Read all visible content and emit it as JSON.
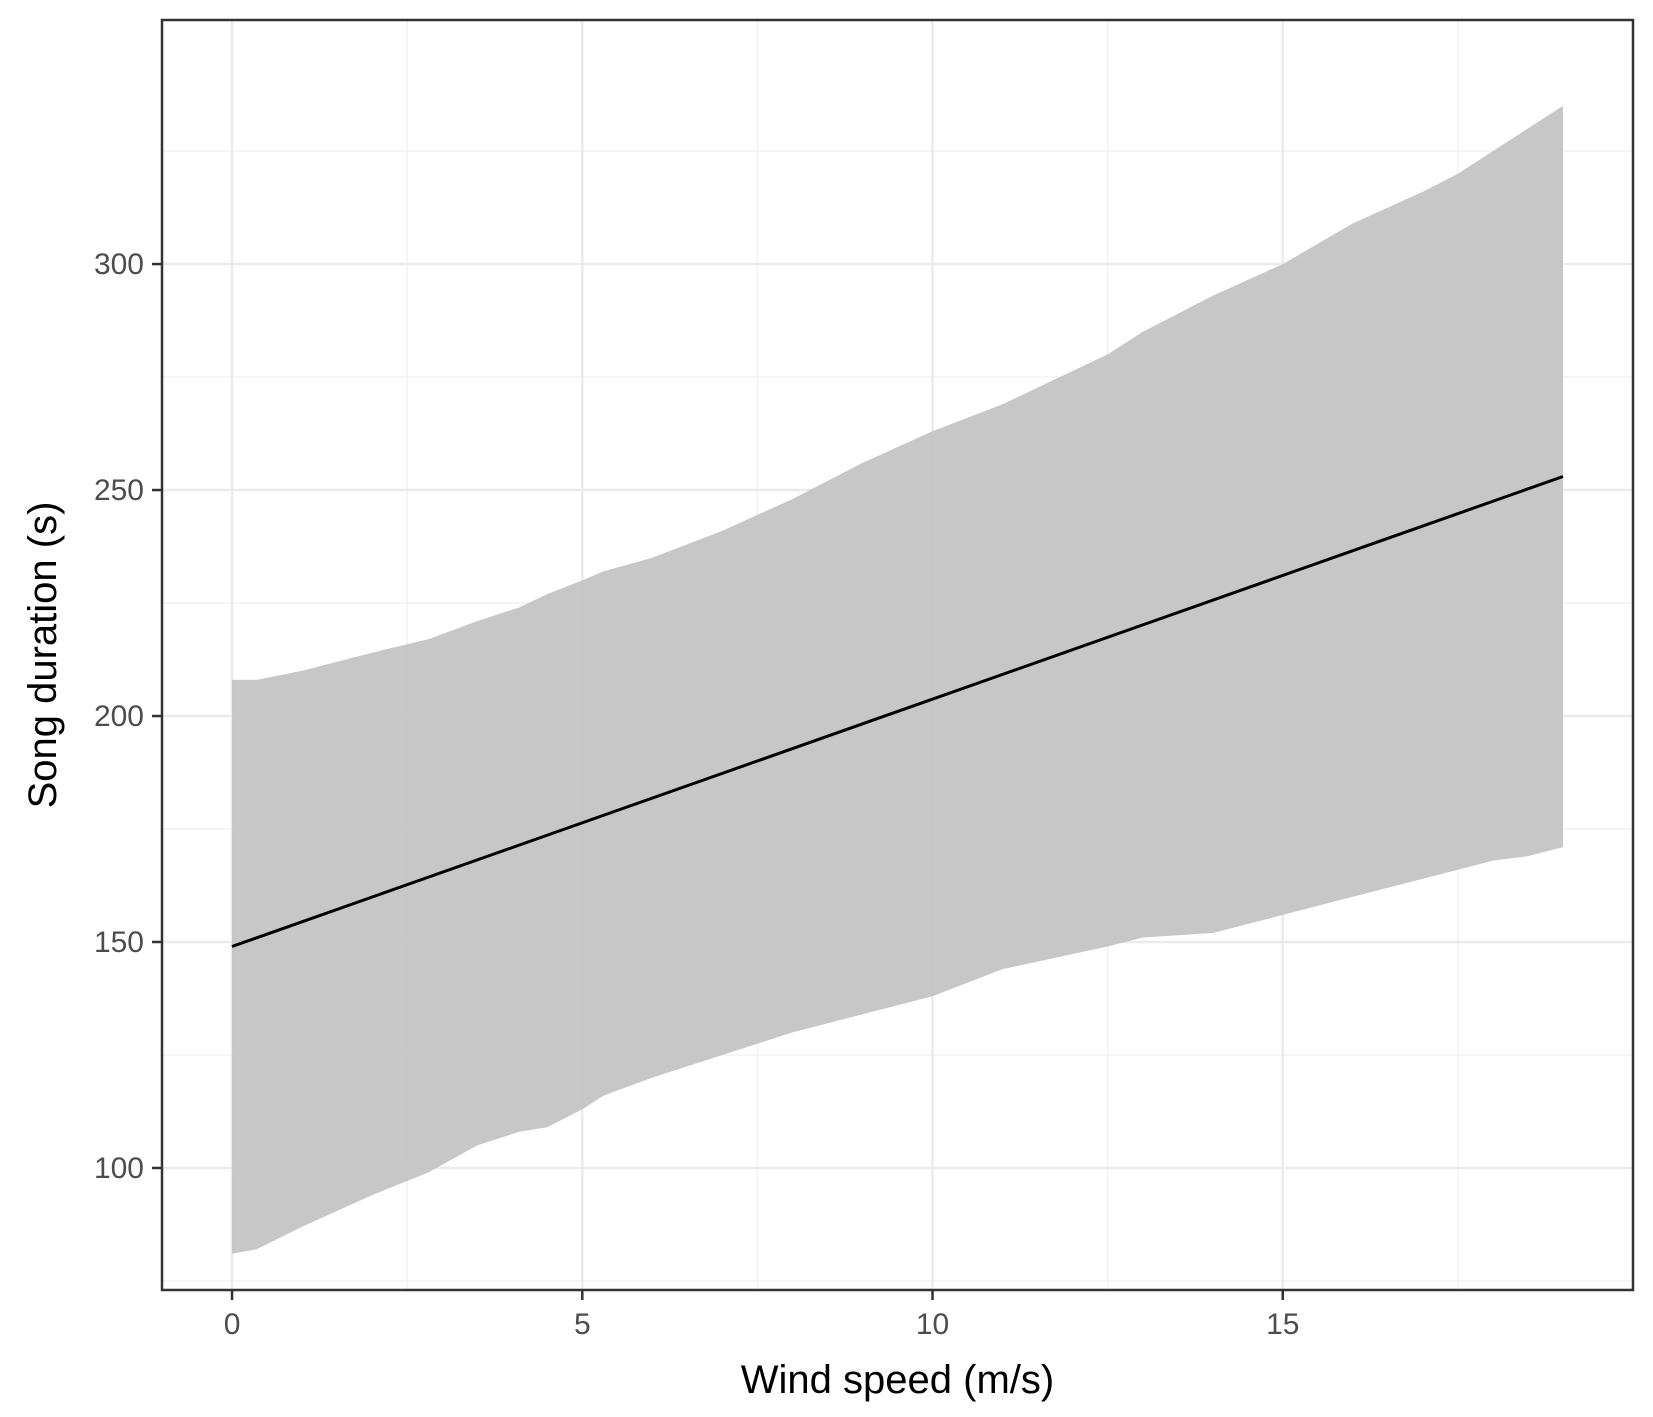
{
  "chart_data": {
    "type": "line",
    "title": "",
    "xlabel": "Wind speed (m/s)",
    "ylabel": "Song duration (s)",
    "xlim": [
      -1,
      20
    ],
    "ylim": [
      73,
      354
    ],
    "x_ticks": [
      0,
      5,
      10,
      15
    ],
    "x_tick_labels": [
      "0",
      "5",
      "10",
      "15"
    ],
    "y_ticks": [
      100,
      150,
      200,
      250,
      300
    ],
    "y_tick_labels": [
      "100",
      "150",
      "200",
      "250",
      "300"
    ],
    "grid": true,
    "legend": "none",
    "series": [
      {
        "x": [
          0,
          19
        ],
        "y": [
          149,
          253
        ]
      }
    ],
    "confidence_band": {
      "x": [
        0,
        0.35,
        1,
        2,
        2.8,
        3.5,
        4.1,
        4.5,
        5,
        5.3,
        6,
        7,
        8,
        9,
        10,
        11,
        12.5,
        13,
        14,
        15,
        16,
        17,
        17.5,
        18,
        18.5,
        19
      ],
      "upper": [
        208,
        208,
        210,
        214,
        217,
        221,
        224,
        227,
        230,
        232,
        235,
        241,
        248,
        256,
        263,
        269,
        280,
        285,
        293,
        300,
        309,
        316,
        320,
        325,
        330,
        335
      ],
      "lower": [
        81,
        82,
        87,
        94,
        99,
        105,
        108,
        109,
        113,
        116,
        120,
        125,
        130,
        134,
        138,
        144,
        149,
        151,
        152,
        156,
        160,
        164,
        166,
        168,
        169,
        171
      ]
    },
    "colors": {
      "line": "#000000",
      "band": "#c2c2c2",
      "grid_major": "#ebebeb",
      "grid_minor": "#f2f2f2",
      "panel_border": "#333333"
    }
  }
}
